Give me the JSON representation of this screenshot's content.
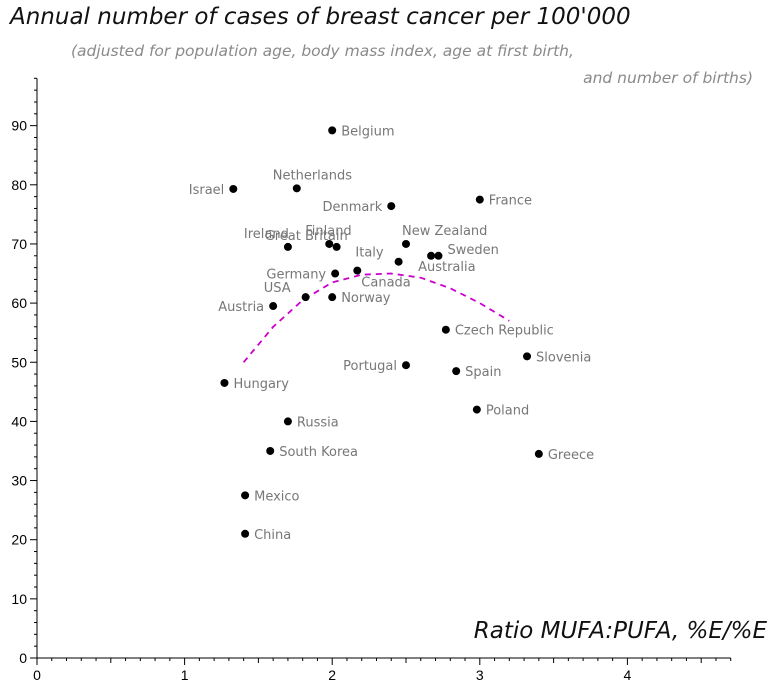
{
  "chart_data": {
    "type": "scatter",
    "title": "Annual number of cases of breast cancer per 100'000",
    "subtitle_line1": "(adjusted for population age, body mass index, age at first birth,",
    "subtitle_line2": "and number of births)",
    "xlabel": "Ratio MUFA:PUFA, %E/%E",
    "ylabel": "",
    "xlim": [
      0,
      4.7
    ],
    "ylim": [
      0,
      98
    ],
    "xticks": [
      0,
      1,
      2,
      3,
      4
    ],
    "yticks": [
      0,
      10,
      20,
      30,
      40,
      50,
      60,
      70,
      80,
      90
    ],
    "grid": false,
    "colors": {
      "points": "#000000",
      "labels": "#777777",
      "fit": "#cc00cc",
      "axes": "#000000"
    },
    "points": [
      {
        "label": "Belgium",
        "x": 2.0,
        "y": 89.2,
        "side": "right"
      },
      {
        "label": "Israel",
        "x": 1.33,
        "y": 79.3,
        "side": "left"
      },
      {
        "label": "Netherlands",
        "x": 1.76,
        "y": 79.4,
        "side": "above"
      },
      {
        "label": "France",
        "x": 3.0,
        "y": 77.5,
        "side": "right"
      },
      {
        "label": "Denmark",
        "x": 2.4,
        "y": 76.4,
        "side": "left"
      },
      {
        "label": "Ireland",
        "x": 1.7,
        "y": 69.5,
        "side": "aboveleft"
      },
      {
        "label": "Finland",
        "x": 1.98,
        "y": 70.0,
        "side": "above"
      },
      {
        "label": "New Zealand",
        "x": 2.5,
        "y": 70.0,
        "side": "aboveright"
      },
      {
        "label": "Sweden",
        "x": 2.72,
        "y": 68.0,
        "side": "rightup"
      },
      {
        "label": "Italy",
        "x": 2.45,
        "y": 67.0,
        "side": "leftup"
      },
      {
        "label": "Great Britain",
        "x": 2.03,
        "y": 69.5,
        "side": "belowleft"
      },
      {
        "label": "Australia",
        "x": 2.67,
        "y": 68.0,
        "side": "below"
      },
      {
        "label": "Germany",
        "x": 2.02,
        "y": 65.0,
        "side": "left"
      },
      {
        "label": "Canada",
        "x": 2.17,
        "y": 65.5,
        "side": "belowright"
      },
      {
        "label": "USA",
        "x": 1.82,
        "y": 61.0,
        "side": "leftup"
      },
      {
        "label": "Norway",
        "x": 2.0,
        "y": 61.0,
        "side": "right"
      },
      {
        "label": "Austria",
        "x": 1.6,
        "y": 59.5,
        "side": "left"
      },
      {
        "label": "Czech Republic",
        "x": 2.77,
        "y": 55.5,
        "side": "right"
      },
      {
        "label": "Slovenia",
        "x": 3.32,
        "y": 51.0,
        "side": "right"
      },
      {
        "label": "Portugal",
        "x": 2.5,
        "y": 49.5,
        "side": "left"
      },
      {
        "label": "Spain",
        "x": 2.84,
        "y": 48.5,
        "side": "right"
      },
      {
        "label": "Hungary",
        "x": 1.27,
        "y": 46.5,
        "side": "right"
      },
      {
        "label": "Poland",
        "x": 2.98,
        "y": 42.0,
        "side": "right"
      },
      {
        "label": "Russia",
        "x": 1.7,
        "y": 40.0,
        "side": "right"
      },
      {
        "label": "South Korea",
        "x": 1.58,
        "y": 35.0,
        "side": "right"
      },
      {
        "label": "Greece",
        "x": 3.4,
        "y": 34.5,
        "side": "right"
      },
      {
        "label": "Mexico",
        "x": 1.41,
        "y": 27.5,
        "side": "right"
      },
      {
        "label": "China",
        "x": 1.41,
        "y": 21.0,
        "side": "right"
      }
    ],
    "fit_curve": {
      "type": "quadratic",
      "style": "dashed",
      "x": [
        1.4,
        1.6,
        1.8,
        2.0,
        2.2,
        2.4,
        2.6,
        2.8,
        3.0,
        3.2
      ],
      "y": [
        50.0,
        56.0,
        60.5,
        63.5,
        64.8,
        65.0,
        64.3,
        62.5,
        60.0,
        57.0
      ]
    }
  }
}
